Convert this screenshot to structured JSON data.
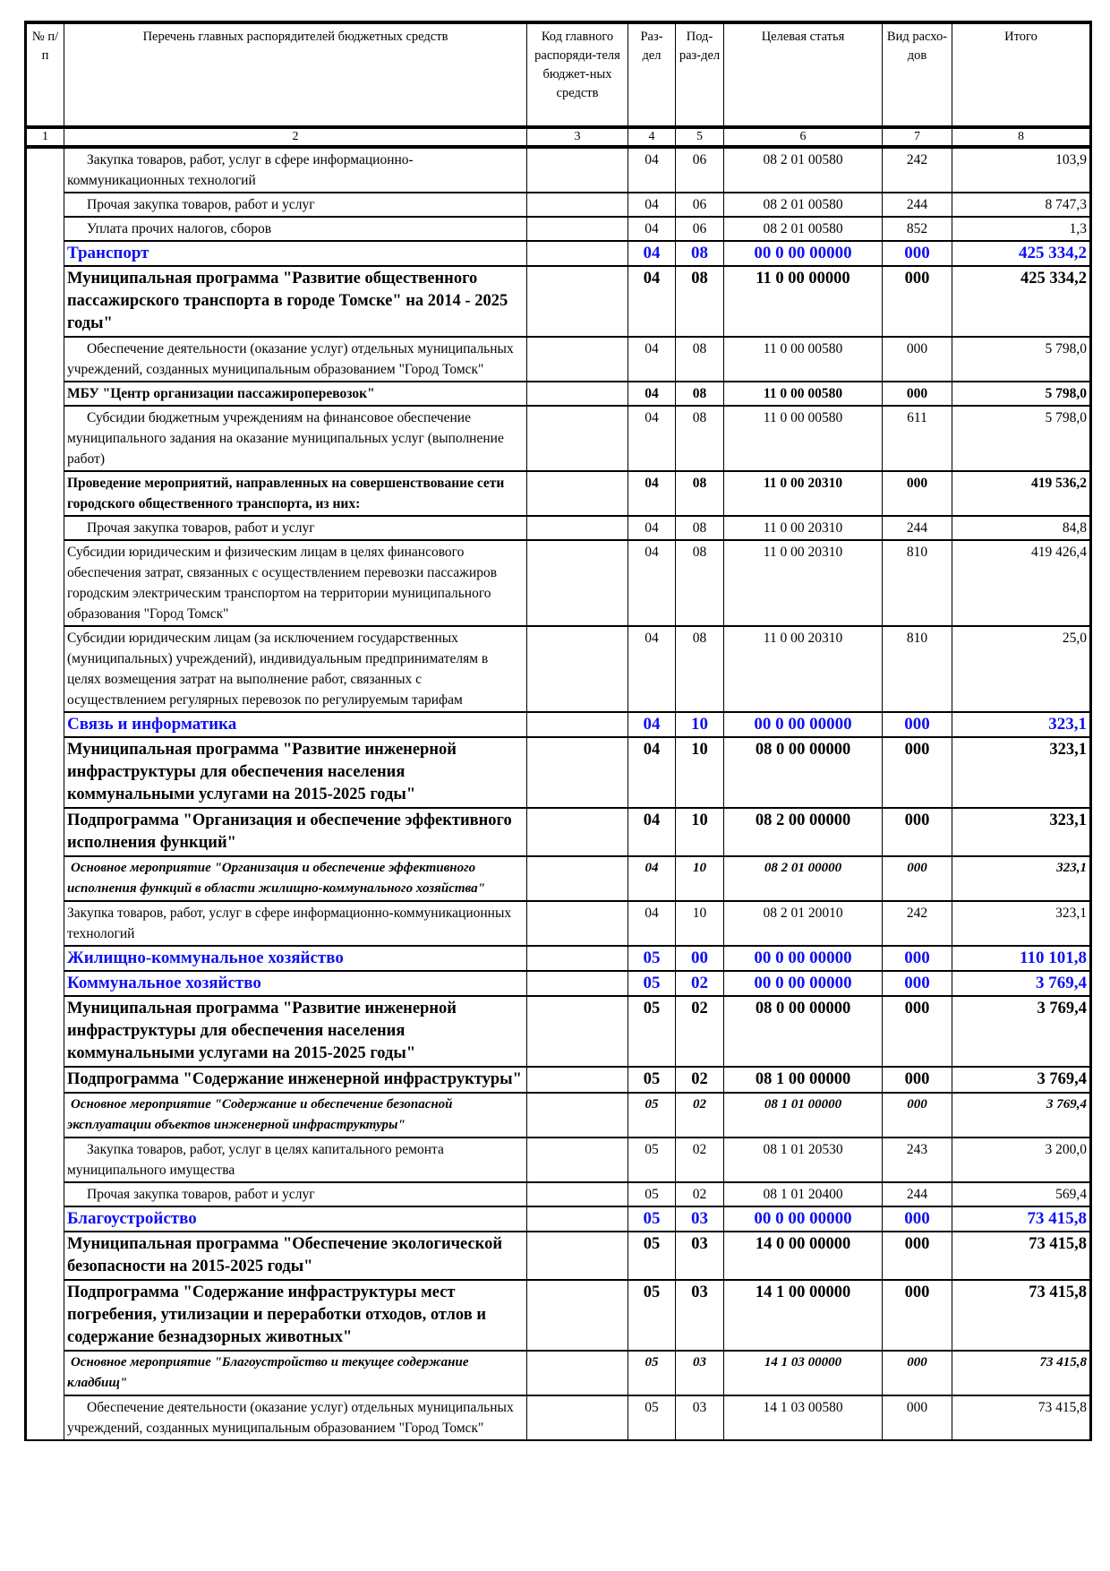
{
  "header": {
    "col1": "№ п/п",
    "col2": "Перечень главных распорядителей бюджетных средств",
    "col3": "Код главного распоряди-теля бюджет-ных средств",
    "col4": "Раз-дел",
    "col5": "Под-раз-дел",
    "col6": "Целевая статья",
    "col7": "Вид расхо-дов",
    "col8": "Итого"
  },
  "column_numbers": [
    "1",
    "2",
    "3",
    "4",
    "5",
    "6",
    "7",
    "8"
  ],
  "rows": [
    {
      "name": "Закупка товаров, работ, услуг в сфере информационно-коммуникационных технологий",
      "razdel": "04",
      "podrazdel": "06",
      "cs": "08 2 01 00580",
      "vr": "242",
      "total": "103,9",
      "style": "n"
    },
    {
      "name": "Прочая закупка товаров, работ и услуг",
      "razdel": "04",
      "podrazdel": "06",
      "cs": "08 2 01 00580",
      "vr": "244",
      "total": "8 747,3",
      "style": "n"
    },
    {
      "name": "Уплата прочих налогов, сборов",
      "razdel": "04",
      "podrazdel": "06",
      "cs": "08 2 01 00580",
      "vr": "852",
      "total": "1,3",
      "style": "n"
    },
    {
      "name": "Транспорт",
      "razdel": "04",
      "podrazdel": "08",
      "cs": "00 0 00 00000",
      "vr": "000",
      "total": "425 334,2",
      "style": "sec"
    },
    {
      "name": "Муниципальная программа \"Развитие общественного пассажирского транспорта в городе Томске\" на 2014 - 2025 годы\"",
      "razdel": "04",
      "podrazdel": "08",
      "cs": "11 0 00 00000",
      "vr": "000",
      "total": "425 334,2",
      "style": "bb"
    },
    {
      "name": "Обеспечение деятельности (оказание услуг) отдельных муниципальных учреждений, созданных муниципальным образованием \"Город Томск\"",
      "razdel": "04",
      "podrazdel": "08",
      "cs": "11 0 00 00580",
      "vr": "000",
      "total": "5 798,0",
      "style": "n"
    },
    {
      "name": "МБУ \"Центр организации пассажироперевозок\"",
      "razdel": "04",
      "podrazdel": "08",
      "cs": "11 0 00 00580",
      "vr": "000",
      "total": "5 798,0",
      "style": "b"
    },
    {
      "name": "Субсидии бюджетным учреждениям на финансовое обеспечение муниципального задания на оказание муниципальных услуг (выполнение работ)",
      "razdel": "04",
      "podrazdel": "08",
      "cs": "11 0 00 00580",
      "vr": "611",
      "total": "5 798,0",
      "style": "n"
    },
    {
      "name": "Проведение мероприятий, направленных на совершенствование сети городского общественного транспорта, из них:",
      "razdel": "04",
      "podrazdel": "08",
      "cs": "11 0 00 20310",
      "vr": "000",
      "total": "419 536,2",
      "style": "b"
    },
    {
      "name": "Прочая закупка товаров, работ и услуг",
      "razdel": "04",
      "podrazdel": "08",
      "cs": "11 0 00 20310",
      "vr": "244",
      "total": "84,8",
      "style": "n"
    },
    {
      "name": "Субсидии юридическим и физическим лицам в целях финансового обеспечения затрат, связанных с осуществлением перевозки пассажиров городским электрическим транспортом на территории муниципального образования \"Город Томск\"",
      "razdel": "04",
      "podrazdel": "08",
      "cs": "11 0 00 20310",
      "vr": "810",
      "total": "419 426,4",
      "style": "n0"
    },
    {
      "name": "Субсидии юридическим лицам (за исключением государственных (муниципальных) учреждений), индивидуальным предпринимателям в целях возмещения затрат на выполнение работ, связанных с осуществлением регулярных перевозок по регулируемым тарифам",
      "razdel": "04",
      "podrazdel": "08",
      "cs": "11 0 00 20310",
      "vr": "810",
      "total": "25,0",
      "style": "n0"
    },
    {
      "name": "Связь и информатика",
      "razdel": "04",
      "podrazdel": "10",
      "cs": "00 0 00 00000",
      "vr": "000",
      "total": "323,1",
      "style": "sec"
    },
    {
      "name": "Муниципальная программа \"Развитие инженерной инфраструктуры для обеспечения населения коммунальными услугами на 2015-2025 годы\"",
      "razdel": "04",
      "podrazdel": "10",
      "cs": "08 0 00 00000",
      "vr": "000",
      "total": "323,1",
      "style": "bb"
    },
    {
      "name": "Подпрограмма \"Организация и обеспечение эффективного исполнения функций\"",
      "razdel": "04",
      "podrazdel": "10",
      "cs": "08 2 00 00000",
      "vr": "000",
      "total": "323,1",
      "style": "bb"
    },
    {
      "name": "Основное мероприятие \"Организация и обеспечение эффективного исполнения функций в области жилищно-коммунального хозяйства\"",
      "razdel": "04",
      "podrazdel": "10",
      "cs": "08 2 01 00000",
      "vr": "000",
      "total": "323,1",
      "style": "it"
    },
    {
      "name": "Закупка товаров, работ, услуг в сфере информационно-коммуникационных технологий",
      "razdel": "04",
      "podrazdel": "10",
      "cs": "08 2 01 20010",
      "vr": "242",
      "total": "323,1",
      "style": "n0"
    },
    {
      "name": "Жилищно-коммунальное хозяйство",
      "razdel": "05",
      "podrazdel": "00",
      "cs": "00 0 00 00000",
      "vr": "000",
      "total": "110 101,8",
      "style": "sec"
    },
    {
      "name": "Коммунальное хозяйство",
      "razdel": "05",
      "podrazdel": "02",
      "cs": "00 0 00 00000",
      "vr": "000",
      "total": "3 769,4",
      "style": "sec"
    },
    {
      "name": "Муниципальная программа \"Развитие инженерной инфраструктуры для обеспечения населения коммунальными услугами на 2015-2025 годы\"",
      "razdel": "05",
      "podrazdel": "02",
      "cs": "08 0 00 00000",
      "vr": "000",
      "total": "3 769,4",
      "style": "bb"
    },
    {
      "name": "Подпрограмма \"Содержание инженерной инфраструктуры\"",
      "razdel": "05",
      "podrazdel": "02",
      "cs": "08 1 00 00000",
      "vr": "000",
      "total": "3 769,4",
      "style": "bb"
    },
    {
      "name": "Основное мероприятие \"Содержание и обеспечение безопасной эксплуатации объектов инженерной инфраструктуры\"",
      "razdel": "05",
      "podrazdel": "02",
      "cs": "08 1 01 00000",
      "vr": "000",
      "total": "3 769,4",
      "style": "it"
    },
    {
      "name": "Закупка товаров, работ, услуг в целях капитального ремонта муниципального имущества",
      "razdel": "05",
      "podrazdel": "02",
      "cs": "08 1 01 20530",
      "vr": "243",
      "total": "3 200,0",
      "style": "n"
    },
    {
      "name": "Прочая закупка товаров, работ и услуг",
      "razdel": "05",
      "podrazdel": "02",
      "cs": "08 1 01 20400",
      "vr": "244",
      "total": "569,4",
      "style": "n"
    },
    {
      "name": "Благоустройство",
      "razdel": "05",
      "podrazdel": "03",
      "cs": "00 0 00 00000",
      "vr": "000",
      "total": "73 415,8",
      "style": "sec"
    },
    {
      "name": "Муниципальная программа \"Обеспечение экологической безопасности на 2015-2025 годы\"",
      "razdel": "05",
      "podrazdel": "03",
      "cs": "14 0 00 00000",
      "vr": "000",
      "total": "73 415,8",
      "style": "bb"
    },
    {
      "name": "Подпрограмма \"Содержание инфраструктуры мест погребения, утилизации и переработки отходов, отлов и содержание безнадзорных животных\"",
      "razdel": "05",
      "podrazdel": "03",
      "cs": "14 1 00 00000",
      "vr": "000",
      "total": "73 415,8",
      "style": "bb"
    },
    {
      "name": "Основное мероприятие \"Благоустройство и текущее содержание кладбищ\"",
      "razdel": "05",
      "podrazdel": "03",
      "cs": "14 1 03 00000",
      "vr": "000",
      "total": "73 415,8",
      "style": "it"
    },
    {
      "name": "Обеспечение деятельности (оказание услуг) отдельных муниципальных учреждений, созданных муниципальным образованием \"Город Томск\"",
      "razdel": "05",
      "podrazdel": "03",
      "cs": "14 1 03 00580",
      "vr": "000",
      "total": "73 415,8",
      "style": "n"
    }
  ],
  "colors": {
    "section_text": "#1010f0",
    "text": "#000000"
  }
}
